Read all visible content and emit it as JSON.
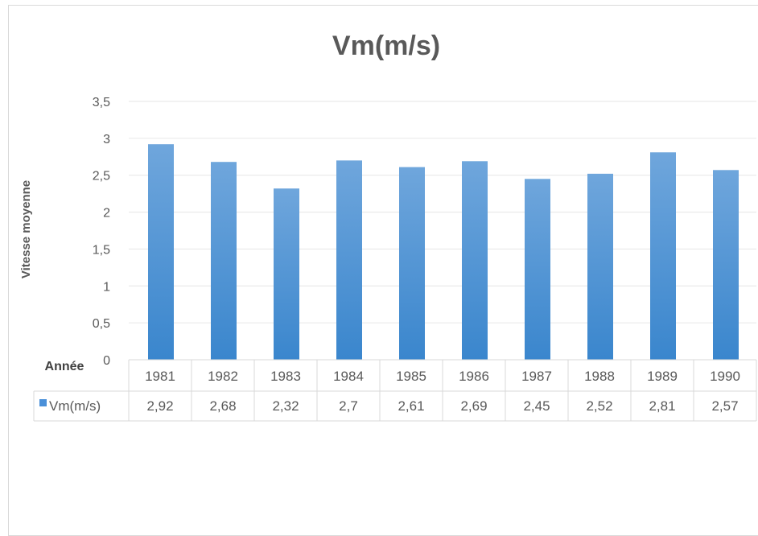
{
  "chart_data": {
    "type": "bar",
    "title": "Vm(m/s)",
    "xlabel": "Année",
    "ylabel": "Vitesse moyenne",
    "ylim": [
      0,
      3.5
    ],
    "yticks": [
      "0",
      "0,5",
      "1",
      "1,5",
      "2",
      "2,5",
      "3",
      "3,5"
    ],
    "categories": [
      "1981",
      "1982",
      "1983",
      "1984",
      "1985",
      "1986",
      "1987",
      "1988",
      "1989",
      "1990"
    ],
    "series": [
      {
        "name": "Vm(m/s)",
        "values": [
          2.92,
          2.68,
          2.32,
          2.7,
          2.61,
          2.69,
          2.45,
          2.52,
          2.81,
          2.57
        ],
        "labels": [
          "2,92",
          "2,68",
          "2,32",
          "2,7",
          "2,61",
          "2,69",
          "2,45",
          "2,52",
          "2,81",
          "2,57"
        ]
      }
    ],
    "grid": true,
    "legend": "data-table",
    "colors": {
      "bar_top": "#6fa6dc",
      "bar_bottom": "#3a86cd",
      "legend_marker": "#4a90d9",
      "grid": "#e6e6e6",
      "table_border": "#d9d9d9"
    }
  }
}
